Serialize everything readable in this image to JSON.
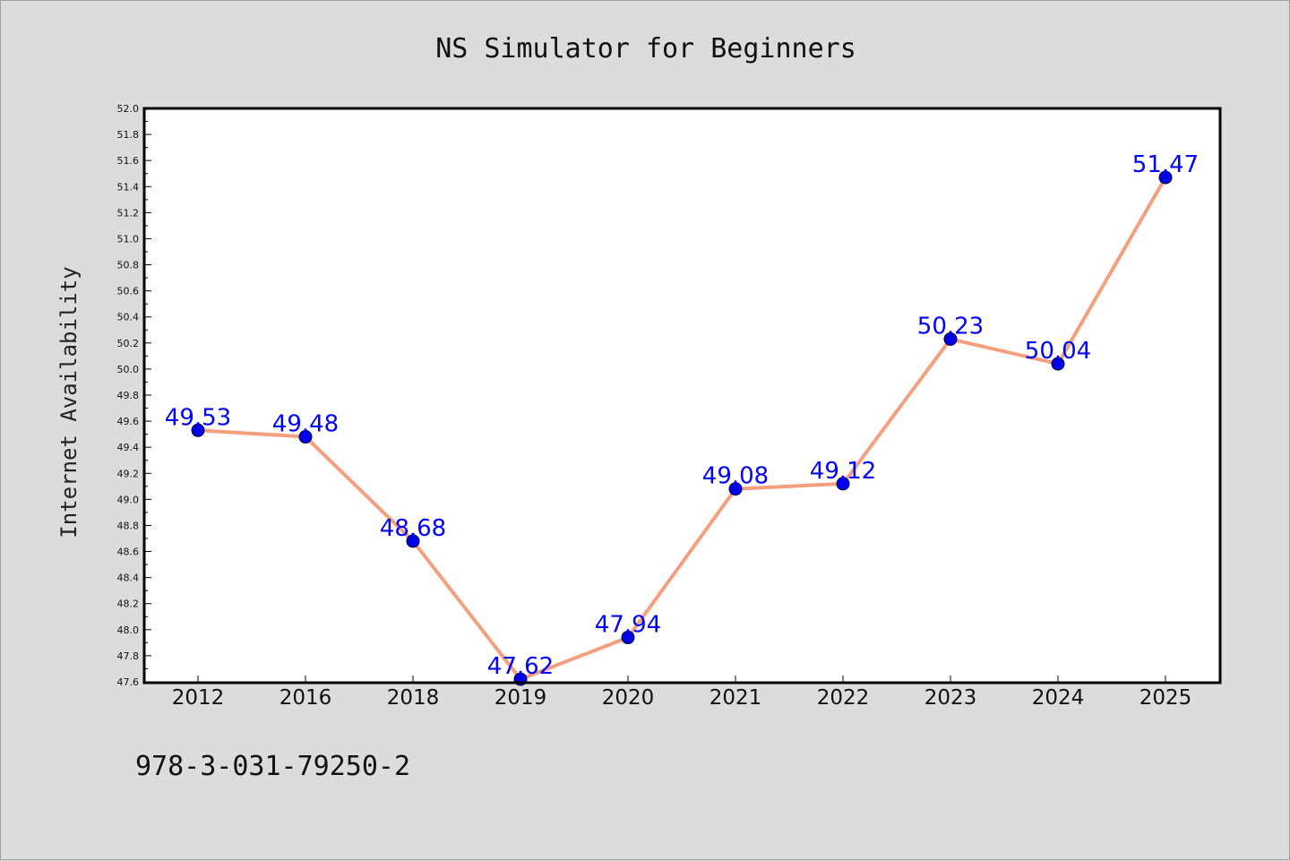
{
  "chart_data": {
    "type": "line",
    "title": "NS Simulator for Beginners",
    "xlabel": "",
    "ylabel": "Internet Availability",
    "categories": [
      "2012",
      "2016",
      "2018",
      "2019",
      "2020",
      "2021",
      "2022",
      "2023",
      "2024",
      "2025"
    ],
    "values": [
      49.53,
      49.48,
      48.68,
      47.62,
      47.94,
      49.08,
      49.12,
      50.23,
      50.04,
      51.47
    ],
    "data_labels": [
      "49.53",
      "49.48",
      "48.68",
      "47.62",
      "47.94",
      "49.08",
      "49.12",
      "50.23",
      "50.04",
      "51.47"
    ],
    "ylim": [
      47.6,
      52.0
    ],
    "yticks": [
      "47.6",
      "47.8",
      "48.0",
      "48.2",
      "48.4",
      "48.6",
      "48.8",
      "49.0",
      "49.2",
      "49.4",
      "49.6",
      "49.8",
      "50.0",
      "50.2",
      "50.4",
      "50.6",
      "50.8",
      "51.0",
      "51.2",
      "51.4",
      "51.6",
      "51.8",
      "52.0"
    ],
    "grid": false,
    "legend": "none",
    "colors": {
      "line": "#f4a07f",
      "marker": "#0000ee",
      "label": "#0000ff",
      "background": "#dcdcdc",
      "plot_background": "#ffffff"
    }
  },
  "footer_text": "978-3-031-79250-2"
}
